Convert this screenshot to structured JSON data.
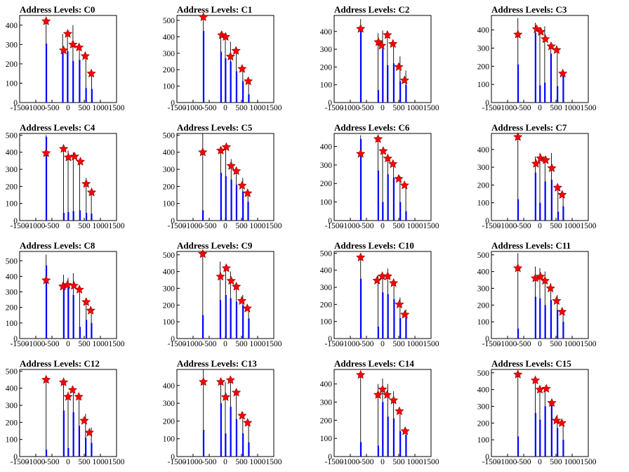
{
  "chart_data": [
    {
      "type": "histogram",
      "title": "Address Levels: C0",
      "xlim": [
        -1500,
        1500
      ],
      "ylim": [
        0,
        450
      ],
      "yticks": [
        0,
        100,
        200,
        300,
        400
      ],
      "stars": [
        [
          -680,
          420
        ],
        [
          -140,
          270
        ],
        [
          -10,
          355
        ],
        [
          150,
          300
        ],
        [
          340,
          285
        ],
        [
          530,
          240
        ],
        [
          720,
          150
        ]
      ],
      "spikes": [
        [
          -680,
          440,
          305
        ],
        [
          -170,
          355,
          265
        ],
        [
          -20,
          375,
          265
        ],
        [
          150,
          400,
          215
        ],
        [
          350,
          305,
          220
        ],
        [
          550,
          255,
          75
        ],
        [
          730,
          150,
          70
        ]
      ]
    },
    {
      "type": "histogram",
      "title": "Address Levels: C1",
      "xlim": [
        -1500,
        1500
      ],
      "ylim": [
        0,
        530
      ],
      "yticks": [
        0,
        100,
        200,
        300,
        400,
        500
      ],
      "stars": [
        [
          -680,
          520
        ],
        [
          -110,
          410
        ],
        [
          10,
          400
        ],
        [
          160,
          280
        ],
        [
          330,
          315
        ],
        [
          520,
          205
        ],
        [
          710,
          130
        ]
      ],
      "spikes": [
        [
          -680,
          540,
          435
        ],
        [
          -140,
          430,
          310
        ],
        [
          0,
          420,
          270
        ],
        [
          160,
          370,
          250
        ],
        [
          340,
          320,
          190
        ],
        [
          540,
          220,
          130
        ],
        [
          720,
          140,
          50
        ]
      ]
    },
    {
      "type": "histogram",
      "title": "Address Levels: C2",
      "xlim": [
        -1500,
        1500
      ],
      "ylim": [
        0,
        490
      ],
      "yticks": [
        0,
        100,
        200,
        300,
        400
      ],
      "stars": [
        [
          -680,
          415
        ],
        [
          -130,
          340
        ],
        [
          -30,
          320
        ],
        [
          150,
          380
        ],
        [
          320,
          330
        ],
        [
          500,
          200
        ],
        [
          680,
          125
        ]
      ],
      "spikes": [
        [
          -680,
          470,
          410
        ],
        [
          -140,
          390,
          70
        ],
        [
          0,
          405,
          300
        ],
        [
          150,
          400,
          210
        ],
        [
          340,
          330,
          220
        ],
        [
          540,
          260,
          120
        ],
        [
          720,
          180,
          100
        ]
      ]
    },
    {
      "type": "histogram",
      "title": "Address Levels: C3",
      "xlim": [
        -1500,
        1500
      ],
      "ylim": [
        0,
        480
      ],
      "yticks": [
        0,
        100,
        200,
        300,
        400
      ],
      "stars": [
        [
          -680,
          375
        ],
        [
          -100,
          405
        ],
        [
          30,
          390
        ],
        [
          170,
          350
        ],
        [
          350,
          310
        ],
        [
          520,
          290
        ],
        [
          710,
          160
        ]
      ],
      "spikes": [
        [
          -680,
          465,
          210
        ],
        [
          -140,
          440,
          385
        ],
        [
          0,
          400,
          95
        ],
        [
          150,
          420,
          110
        ],
        [
          340,
          330,
          270
        ],
        [
          540,
          300,
          90
        ],
        [
          720,
          170,
          150
        ]
      ]
    },
    {
      "type": "histogram",
      "title": "Address Levels: C4",
      "xlim": [
        -1500,
        1500
      ],
      "ylim": [
        0,
        510
      ],
      "yticks": [
        0,
        100,
        200,
        300,
        400,
        500
      ],
      "stars": [
        [
          -680,
          395
        ],
        [
          -140,
          420
        ],
        [
          10,
          370
        ],
        [
          200,
          375
        ],
        [
          380,
          345
        ],
        [
          560,
          215
        ],
        [
          730,
          165
        ]
      ],
      "spikes": [
        [
          -680,
          500,
          490
        ],
        [
          -140,
          430,
          45
        ],
        [
          0,
          410,
          50
        ],
        [
          160,
          400,
          55
        ],
        [
          360,
          350,
          60
        ],
        [
          560,
          250,
          45
        ],
        [
          720,
          180,
          40
        ]
      ]
    },
    {
      "type": "histogram",
      "title": "Address Levels: C5",
      "xlim": [
        -1500,
        1500
      ],
      "ylim": [
        0,
        510
      ],
      "yticks": [
        0,
        100,
        200,
        300,
        400,
        500
      ],
      "stars": [
        [
          -700,
          400
        ],
        [
          -140,
          410
        ],
        [
          30,
          430
        ],
        [
          180,
          320
        ],
        [
          340,
          290
        ],
        [
          520,
          205
        ],
        [
          690,
          160
        ]
      ],
      "spikes": [
        [
          -700,
          510,
          60
        ],
        [
          -140,
          420,
          280
        ],
        [
          10,
          430,
          260
        ],
        [
          180,
          360,
          240
        ],
        [
          340,
          310,
          210
        ],
        [
          540,
          250,
          170
        ],
        [
          700,
          170,
          110
        ]
      ]
    },
    {
      "type": "histogram",
      "title": "Address Levels: C6",
      "xlim": [
        -1500,
        1500
      ],
      "ylim": [
        0,
        470
      ],
      "yticks": [
        0,
        100,
        200,
        300,
        400
      ],
      "stars": [
        [
          -680,
          360
        ],
        [
          -140,
          440
        ],
        [
          20,
          375
        ],
        [
          160,
          335
        ],
        [
          320,
          305
        ],
        [
          500,
          225
        ],
        [
          680,
          190
        ]
      ],
      "spikes": [
        [
          -680,
          460,
          440
        ],
        [
          -140,
          440,
          270
        ],
        [
          0,
          380,
          100
        ],
        [
          160,
          340,
          250
        ],
        [
          340,
          320,
          230
        ],
        [
          540,
          240,
          100
        ],
        [
          720,
          200,
          50
        ]
      ]
    },
    {
      "type": "histogram",
      "title": "Address Levels: C7",
      "xlim": [
        -1500,
        1500
      ],
      "ylim": [
        0,
        490
      ],
      "yticks": [
        0,
        100,
        200,
        300,
        400
      ],
      "stars": [
        [
          -680,
          470
        ],
        [
          -120,
          320
        ],
        [
          20,
          350
        ],
        [
          180,
          340
        ],
        [
          370,
          295
        ],
        [
          550,
          185
        ],
        [
          690,
          145
        ]
      ],
      "spikes": [
        [
          -680,
          490,
          120
        ],
        [
          -140,
          360,
          270
        ],
        [
          0,
          380,
          100
        ],
        [
          160,
          360,
          220
        ],
        [
          360,
          380,
          230
        ],
        [
          560,
          200,
          50
        ],
        [
          720,
          160,
          80
        ]
      ]
    },
    {
      "type": "histogram",
      "title": "Address Levels: C8",
      "xlim": [
        -1500,
        1500
      ],
      "ylim": [
        0,
        560
      ],
      "yticks": [
        0,
        100,
        200,
        300,
        400,
        500
      ],
      "stars": [
        [
          -680,
          375
        ],
        [
          -160,
          335
        ],
        [
          -20,
          345
        ],
        [
          180,
          340
        ],
        [
          350,
          315
        ],
        [
          560,
          235
        ],
        [
          700,
          180
        ]
      ],
      "spikes": [
        [
          -680,
          540,
          470
        ],
        [
          -140,
          410,
          340
        ],
        [
          0,
          390,
          330
        ],
        [
          160,
          420,
          280
        ],
        [
          360,
          340,
          75
        ],
        [
          560,
          240,
          120
        ],
        [
          720,
          190,
          100
        ]
      ]
    },
    {
      "type": "histogram",
      "title": "Address Levels: C9",
      "xlim": [
        -1500,
        1500
      ],
      "ylim": [
        0,
        520
      ],
      "yticks": [
        0,
        100,
        200,
        300,
        400,
        500
      ],
      "stars": [
        [
          -700,
          505
        ],
        [
          -150,
          370
        ],
        [
          30,
          420
        ],
        [
          180,
          345
        ],
        [
          340,
          310
        ],
        [
          510,
          225
        ],
        [
          680,
          180
        ]
      ],
      "spikes": [
        [
          -700,
          520,
          140
        ],
        [
          -160,
          460,
          230
        ],
        [
          10,
          440,
          260
        ],
        [
          160,
          400,
          240
        ],
        [
          340,
          330,
          220
        ],
        [
          540,
          260,
          200
        ],
        [
          720,
          190,
          120
        ]
      ]
    },
    {
      "type": "histogram",
      "title": "Address Levels: C10",
      "xlim": [
        -1500,
        1500
      ],
      "ylim": [
        0,
        510
      ],
      "yticks": [
        0,
        100,
        200,
        300,
        400,
        500
      ],
      "stars": [
        [
          -680,
          475
        ],
        [
          -170,
          340
        ],
        [
          -10,
          365
        ],
        [
          160,
          365
        ],
        [
          340,
          325
        ],
        [
          520,
          200
        ],
        [
          690,
          140
        ]
      ],
      "spikes": [
        [
          -680,
          500,
          350
        ],
        [
          -140,
          370,
          70
        ],
        [
          0,
          370,
          270
        ],
        [
          160,
          410,
          260
        ],
        [
          350,
          330,
          230
        ],
        [
          540,
          240,
          120
        ],
        [
          720,
          170,
          120
        ]
      ]
    },
    {
      "type": "histogram",
      "title": "Address Levels: C11",
      "xlim": [
        -1500,
        1500
      ],
      "ylim": [
        0,
        520
      ],
      "yticks": [
        0,
        100,
        200,
        300,
        400,
        500
      ],
      "stars": [
        [
          -680,
          420
        ],
        [
          -140,
          360
        ],
        [
          20,
          370
        ],
        [
          160,
          345
        ],
        [
          330,
          300
        ],
        [
          520,
          225
        ],
        [
          690,
          160
        ]
      ],
      "spikes": [
        [
          -680,
          510,
          60
        ],
        [
          -140,
          430,
          250
        ],
        [
          0,
          420,
          240
        ],
        [
          160,
          400,
          200
        ],
        [
          340,
          330,
          230
        ],
        [
          540,
          260,
          170
        ],
        [
          720,
          170,
          100
        ]
      ]
    },
    {
      "type": "histogram",
      "title": "Address Levels: C12",
      "xlim": [
        -1500,
        1500
      ],
      "ylim": [
        0,
        510
      ],
      "yticks": [
        0,
        100,
        200,
        300,
        400,
        500
      ],
      "stars": [
        [
          -680,
          450
        ],
        [
          -140,
          435
        ],
        [
          0,
          350
        ],
        [
          140,
          390
        ],
        [
          330,
          350
        ],
        [
          500,
          210
        ],
        [
          660,
          140
        ]
      ],
      "spikes": [
        [
          -680,
          450,
          40
        ],
        [
          -140,
          440,
          270
        ],
        [
          0,
          380,
          50
        ],
        [
          160,
          400,
          260
        ],
        [
          340,
          360,
          180
        ],
        [
          540,
          250,
          110
        ],
        [
          720,
          170,
          80
        ]
      ]
    },
    {
      "type": "histogram",
      "title": "Address Levels: C13",
      "xlim": [
        -1500,
        1500
      ],
      "ylim": [
        0,
        490
      ],
      "yticks": [
        0,
        100,
        200,
        300,
        400
      ],
      "stars": [
        [
          -680,
          420
        ],
        [
          -140,
          420
        ],
        [
          10,
          335
        ],
        [
          160,
          430
        ],
        [
          340,
          360
        ],
        [
          520,
          230
        ],
        [
          690,
          190
        ]
      ],
      "spikes": [
        [
          -680,
          490,
          150
        ],
        [
          -140,
          420,
          300
        ],
        [
          0,
          420,
          130
        ],
        [
          160,
          430,
          280
        ],
        [
          340,
          360,
          210
        ],
        [
          540,
          250,
          130
        ],
        [
          720,
          190,
          80
        ]
      ]
    },
    {
      "type": "histogram",
      "title": "Address Levels: C14",
      "xlim": [
        -1500,
        1500
      ],
      "ylim": [
        0,
        480
      ],
      "yticks": [
        0,
        100,
        200,
        300,
        400
      ],
      "stars": [
        [
          -680,
          450
        ],
        [
          -140,
          340
        ],
        [
          0,
          370
        ],
        [
          140,
          340
        ],
        [
          340,
          310
        ],
        [
          520,
          250
        ],
        [
          700,
          140
        ]
      ],
      "spikes": [
        [
          -680,
          460,
          80
        ],
        [
          -140,
          400,
          60
        ],
        [
          0,
          430,
          300
        ],
        [
          160,
          400,
          220
        ],
        [
          340,
          360,
          210
        ],
        [
          540,
          260,
          140
        ],
        [
          720,
          150,
          120
        ]
      ]
    },
    {
      "type": "histogram",
      "title": "Address Levels: C15",
      "xlim": [
        -1500,
        1500
      ],
      "ylim": [
        0,
        520
      ],
      "yticks": [
        0,
        100,
        200,
        300,
        400,
        500
      ],
      "stars": [
        [
          -680,
          490
        ],
        [
          -140,
          455
        ],
        [
          0,
          400
        ],
        [
          200,
          405
        ],
        [
          370,
          320
        ],
        [
          510,
          215
        ],
        [
          680,
          200
        ]
      ],
      "spikes": [
        [
          -680,
          500,
          120
        ],
        [
          -140,
          470,
          260
        ],
        [
          0,
          420,
          220
        ],
        [
          160,
          410,
          300
        ],
        [
          360,
          340,
          330
        ],
        [
          540,
          250,
          170
        ],
        [
          720,
          200,
          100
        ]
      ]
    }
  ],
  "xticks": [
    "-1500",
    "-1000",
    "-500",
    "0",
    "500",
    "1000",
    "1500"
  ],
  "colors": {
    "spike": "#000000",
    "fill": "#0000ff",
    "star": "#ff0000",
    "axes": "#000000"
  }
}
